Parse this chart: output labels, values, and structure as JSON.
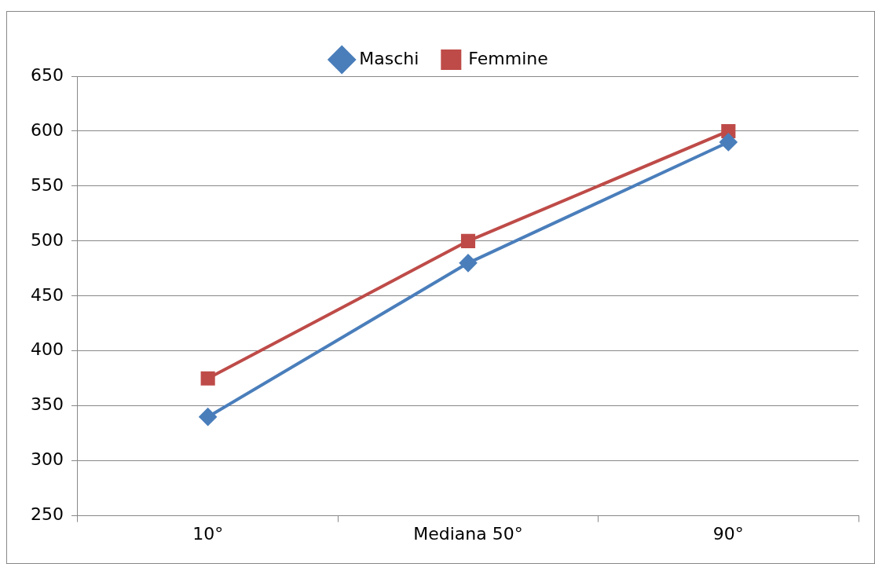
{
  "chart_data": {
    "type": "line",
    "categories": [
      "10°",
      "Mediana 50°",
      "90°"
    ],
    "series": [
      {
        "name": "Maschi",
        "color": "#4a7ebb",
        "marker": "diamond",
        "values": [
          340,
          480,
          590
        ]
      },
      {
        "name": "Femmine",
        "color": "#be4b48",
        "marker": "square",
        "values": [
          375,
          500,
          600
        ]
      }
    ],
    "ylim": [
      250,
      650
    ],
    "yticks": [
      250,
      300,
      350,
      400,
      450,
      500,
      550,
      600,
      650
    ],
    "grid": "y",
    "legend": "top"
  }
}
